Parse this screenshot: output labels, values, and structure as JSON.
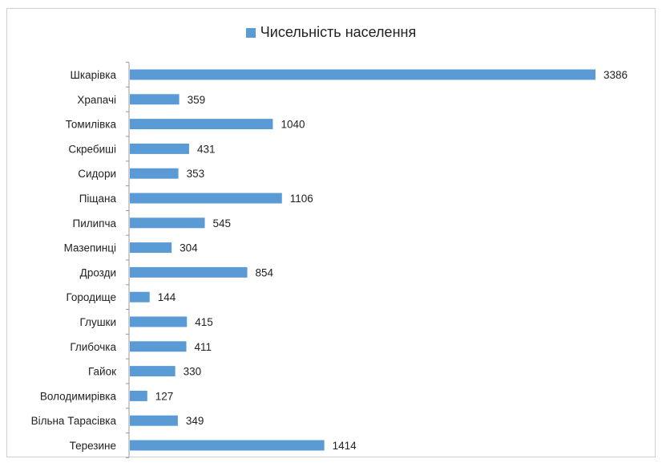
{
  "chart_data": {
    "type": "bar",
    "orientation": "horizontal",
    "categories": [
      "Шкарівка",
      "Храпачі",
      "Томилівка",
      "Скребиші",
      "Сидори",
      "Піщана",
      "Пилипча",
      "Мазепинці",
      "Дрозди",
      "Городище",
      "Глушки",
      "Глибочка",
      "Гайок",
      "Володимирівка",
      "Вільна Тарасівка",
      "Терезине"
    ],
    "series": [
      {
        "name": "Чисельність населення",
        "color": "#5b9bd5",
        "values": [
          3386,
          359,
          1040,
          431,
          353,
          1106,
          545,
          304,
          854,
          144,
          415,
          411,
          330,
          127,
          349,
          1414
        ]
      }
    ],
    "xlim": [
      0,
      3386
    ],
    "legend_position": "top-center",
    "grid": false,
    "data_labels": true
  }
}
